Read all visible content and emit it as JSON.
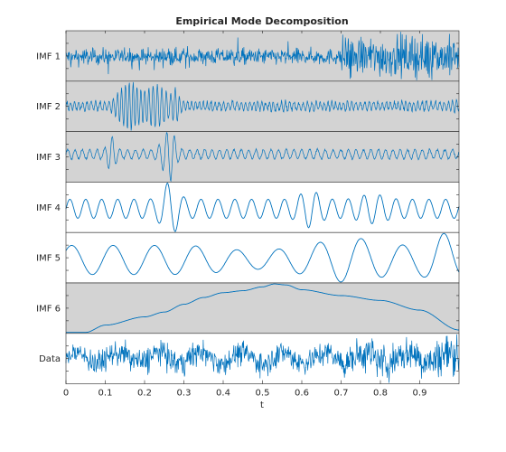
{
  "chart_data": {
    "type": "line",
    "title": "Empirical Mode Decomposition",
    "xlabel": "t",
    "xlim": [
      0,
      1
    ],
    "x_ticks": [
      "0",
      "0.1",
      "0.2",
      "0.3",
      "0.4",
      "0.5",
      "0.6",
      "0.7",
      "0.8",
      "0.9"
    ],
    "x_tick_values": [
      0,
      0.1,
      0.2,
      0.3,
      0.4,
      0.5,
      0.6,
      0.7,
      0.8,
      0.9
    ],
    "line_color": "#0072BD",
    "panels": [
      {
        "label": "IMF 1",
        "background": "#d3d3d3",
        "description": "high-frequency noise; moderate amplitude up to t~0.7, strongly larger amplitude after t~0.7"
      },
      {
        "label": "IMF 2",
        "background": "#d3d3d3",
        "description": "higher-frequency oscillation with large bursts between t~0.13 and t~0.28"
      },
      {
        "label": "IMF 3",
        "background": "#d3d3d3",
        "description": "oscillation with large spikes near t~0.12 and t~0.25-0.28"
      },
      {
        "label": "IMF 4",
        "background": "#ffffff",
        "description": "medium-frequency oscillation with a large spike near t~0.26-0.29"
      },
      {
        "label": "IMF 5",
        "background": "#ffffff",
        "description": "low-frequency oscillation, about 9 cycles, largest near t~0.96"
      },
      {
        "label": "IMF 6",
        "background": "#d3d3d3",
        "description": "residual trend: flat near minimum at t=0, rises to maximum near t~0.53, falls to minimum at t=1",
        "trend_points": {
          "x": [
            0,
            0.05,
            0.1,
            0.2,
            0.25,
            0.3,
            0.35,
            0.4,
            0.45,
            0.5,
            0.53,
            0.56,
            0.6,
            0.7,
            0.8,
            0.9,
            1.0
          ],
          "y": [
            0.0,
            0.0,
            0.15,
            0.32,
            0.42,
            0.58,
            0.72,
            0.82,
            0.86,
            0.94,
            1.0,
            0.98,
            0.88,
            0.76,
            0.66,
            0.46,
            0.05
          ]
        }
      },
      {
        "label": "Data",
        "background": "#ffffff",
        "description": "original noisy signal, larger amplitude after t~0.7"
      }
    ]
  }
}
